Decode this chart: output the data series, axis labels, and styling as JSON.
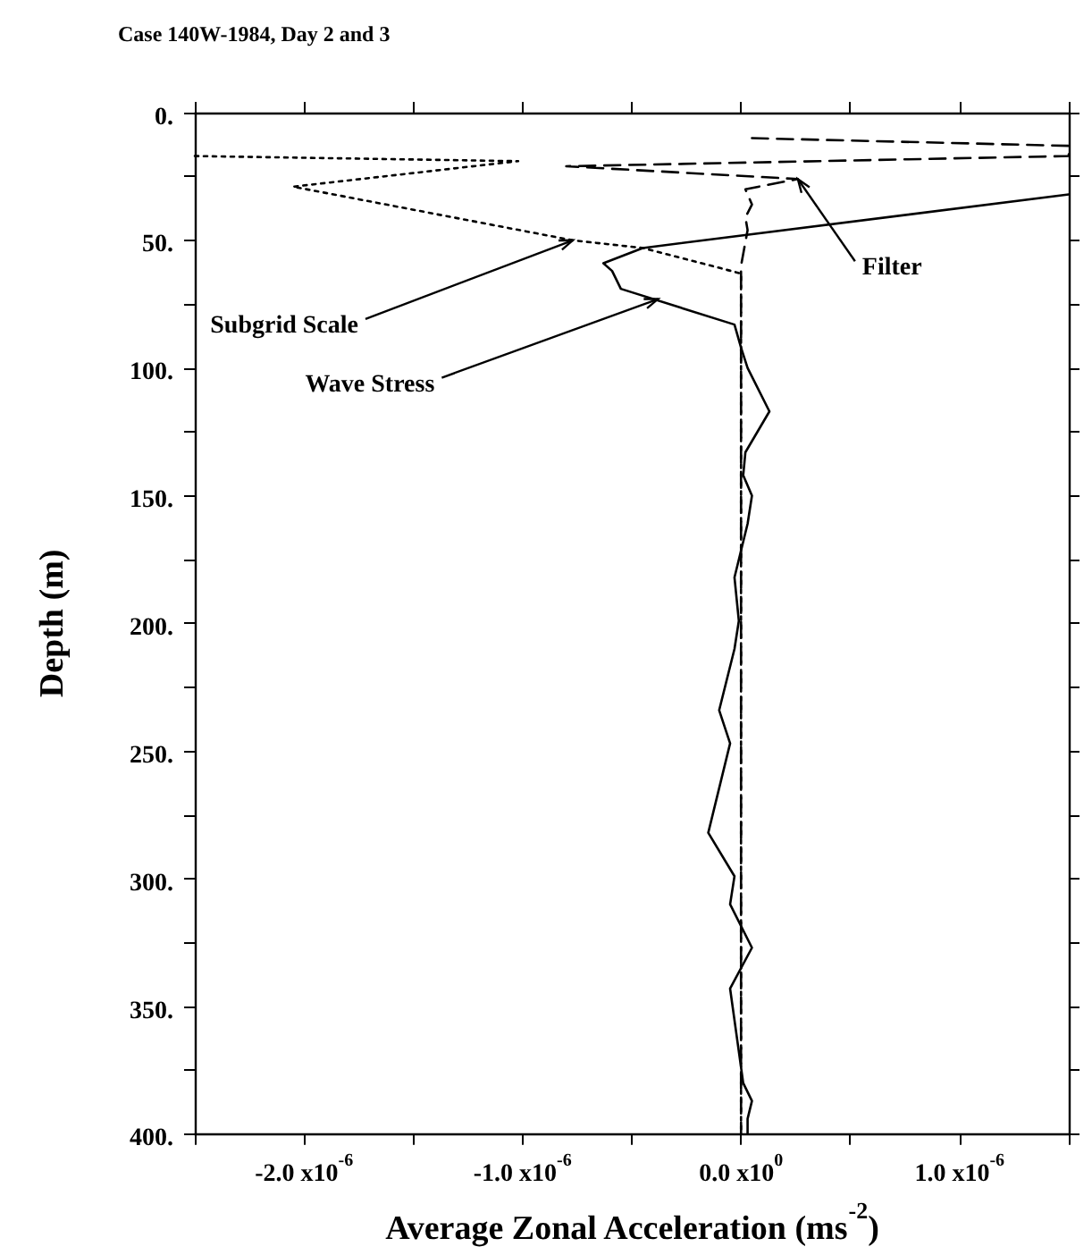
{
  "chart_data": {
    "type": "line",
    "title": "Case 140W-1984, Day 2 and 3",
    "xlabel": "Average Zonal Acceleration (ms$^{-2}$)",
    "ylabel": "Depth (m)",
    "xlim": [
      -2.5e-06,
      1.5e-06
    ],
    "xticks": [
      {
        "value": -2.5e-06,
        "label": null
      },
      {
        "value": -2e-06,
        "label": "-2.0 x10$^{-6}$"
      },
      {
        "value": -1.5e-06,
        "label": null
      },
      {
        "value": -1e-06,
        "label": "-1.0 x10$^{-6}$"
      },
      {
        "value": -5e-07,
        "label": null
      },
      {
        "value": 0,
        "label": "0.0 x10$^{0}$"
      },
      {
        "value": 5e-07,
        "label": null
      },
      {
        "value": 1e-06,
        "label": "1.0 x10$^{-6}$"
      },
      {
        "value": 1.5e-06,
        "label": null
      }
    ],
    "ylim": [
      400,
      0
    ],
    "yticks": [
      {
        "value": 0,
        "label": "0."
      },
      {
        "value": 25,
        "label": null
      },
      {
        "value": 50,
        "label": "50."
      },
      {
        "value": 75,
        "label": null
      },
      {
        "value": 100,
        "label": "100."
      },
      {
        "value": 125,
        "label": null
      },
      {
        "value": 150,
        "label": "150."
      },
      {
        "value": 175,
        "label": null
      },
      {
        "value": 200,
        "label": "200."
      },
      {
        "value": 225,
        "label": null
      },
      {
        "value": 250,
        "label": "250."
      },
      {
        "value": 275,
        "label": null
      },
      {
        "value": 300,
        "label": "300."
      },
      {
        "value": 325,
        "label": null
      },
      {
        "value": 350,
        "label": "350."
      },
      {
        "value": 375,
        "label": null
      },
      {
        "value": 400,
        "label": "400."
      }
    ],
    "grid": false,
    "legend": false,
    "marker": "none",
    "series": [
      {
        "color": "#000000",
        "line_style": "dashed",
        "x": [
          5e-08,
          1.5e-06,
          1.5e-06,
          -8e-07,
          2.6e-07,
          2e-08,
          5e-08,
          2e-08,
          3e-08,
          0.0,
          0.0,
          0.0,
          0.0,
          0.0
        ],
        "values": [
          10,
          13,
          17,
          21,
          26,
          30,
          36,
          41,
          46,
          60,
          100,
          200,
          300,
          400
        ]
      },
      {
        "color": "#000000",
        "line_style": "dotted",
        "x": [
          -2.5e-06,
          -1.02e-06,
          -2.05e-06,
          -7.7e-07,
          -4.5e-07,
          0.0,
          0.0,
          0.0,
          0.0,
          0.0
        ],
        "values": [
          17,
          19,
          29,
          50,
          53,
          63,
          100,
          200,
          300,
          400
        ]
      },
      {
        "color": "#000000",
        "line_style": "solid",
        "x": [
          1.5e-06,
          -4.5e-07,
          -6.3e-07,
          -5.9e-07,
          -5.5e-07,
          -3e-08,
          0.0,
          3e-08,
          1.3e-07,
          2e-08,
          1e-08,
          5e-08,
          3e-08,
          -3e-08,
          -1e-08,
          -3e-08,
          -1e-07,
          -5e-08,
          -9e-08,
          -1.5e-07,
          -3e-08,
          -5e-08,
          5e-08,
          -5e-08,
          1e-08,
          5e-08,
          3e-08,
          3e-08
        ],
        "values": [
          32,
          53,
          59,
          62,
          69,
          83,
          92,
          100,
          117,
          133,
          142,
          150,
          161,
          182,
          199,
          210,
          234,
          247,
          261,
          282,
          299,
          310,
          327,
          343,
          380,
          387,
          394,
          400
        ]
      }
    ],
    "annotations": [
      {
        "text": "Filter",
        "x": 2.6e-07,
        "y": 26
      },
      {
        "text": "Subgrid Scale",
        "x": -7.7e-07,
        "y": 50
      },
      {
        "text": "Wave Stress",
        "x": -3.8e-07,
        "y": 73
      }
    ]
  }
}
